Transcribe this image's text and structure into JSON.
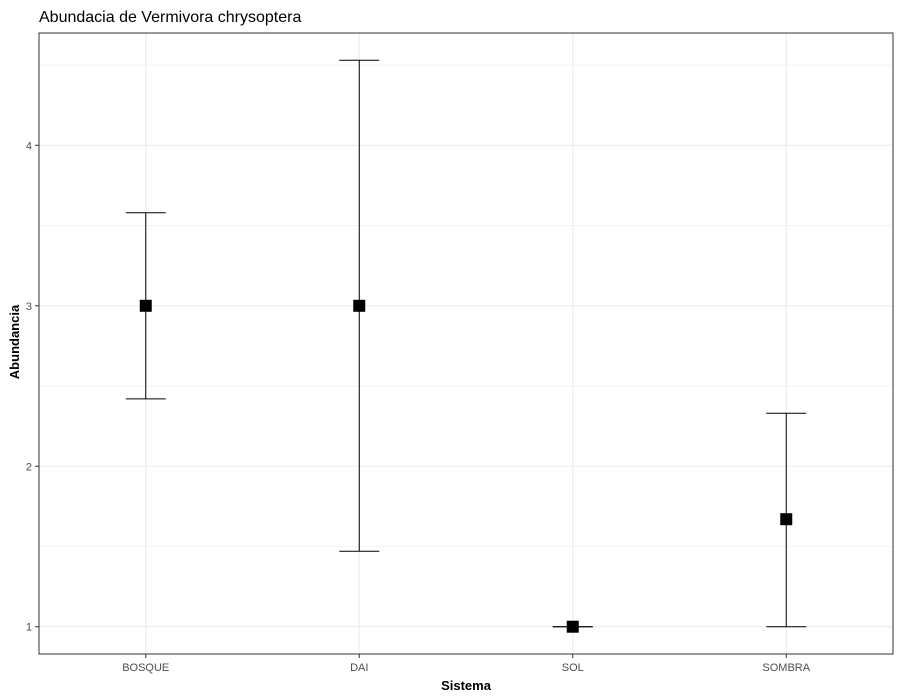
{
  "chart_data": {
    "type": "scatter",
    "title": "Abundacia de Vermivora chrysoptera",
    "xlabel": "Sistema",
    "ylabel": "Abundancia",
    "categories": [
      "BOSQUE",
      "DAI",
      "SOL",
      "SOMBRA"
    ],
    "series": [
      {
        "values": [
          3.0,
          3.0,
          1.0,
          1.67
        ],
        "error_low": [
          2.42,
          1.47,
          1.0,
          1.0
        ],
        "error_high": [
          3.58,
          4.53,
          1.0,
          2.33
        ]
      }
    ],
    "ylim": [
      0.83,
      4.7
    ],
    "yticks": [
      1,
      2,
      3,
      4
    ],
    "grid": true,
    "legend": "none",
    "colors": {
      "point": "#000000",
      "errorbar": "#000000",
      "grid": "#ebebeb",
      "panel_border": "#333333"
    }
  }
}
